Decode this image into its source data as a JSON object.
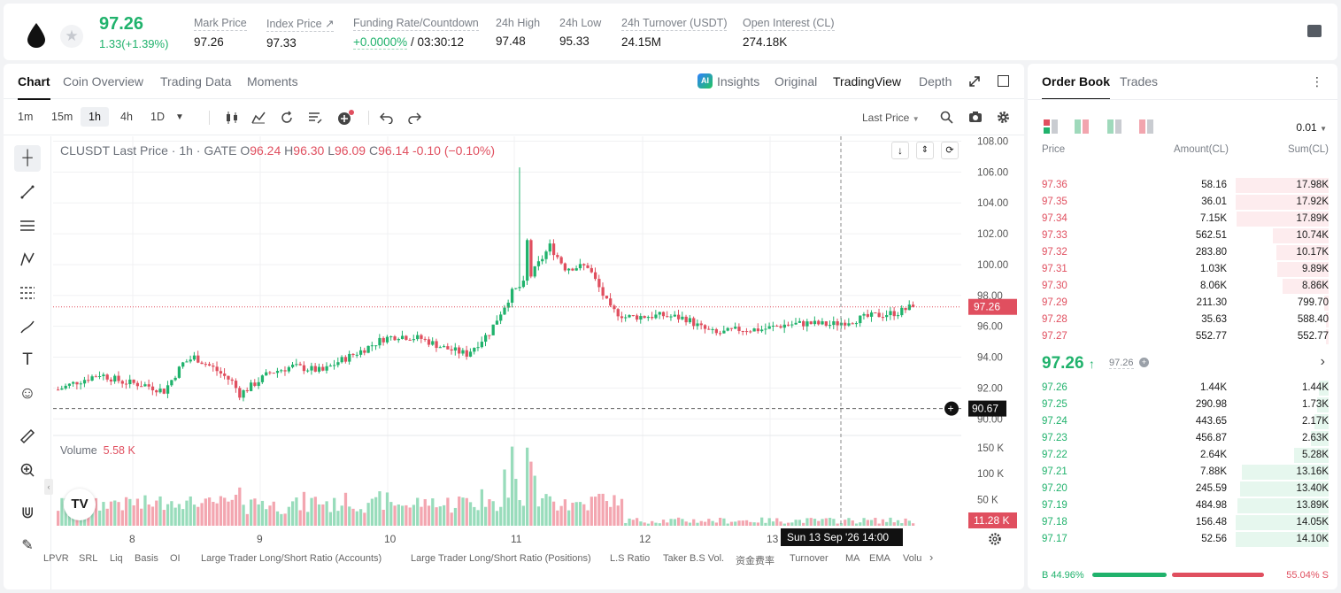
{
  "ticker": {
    "last": "97.26",
    "change": "1.33(+1.39%)",
    "stats": [
      {
        "label": "Mark Price",
        "value": "97.26"
      },
      {
        "label": "Index Price ↗",
        "value": "97.33"
      },
      {
        "label": "Funding Rate/Countdown",
        "value_green": "+0.0000%",
        "value": " / 03:30:12"
      },
      {
        "label": "24h High",
        "value": "97.48"
      },
      {
        "label": "24h Low",
        "value": "95.33"
      },
      {
        "label": "24h Turnover (USDT)",
        "value": "24.15M"
      },
      {
        "label": "Open Interest (CL)",
        "value": "274.18K"
      }
    ]
  },
  "tabs": [
    "Chart",
    "Coin Overview",
    "Trading Data",
    "Moments"
  ],
  "views": [
    "Insights",
    "Original",
    "TradingView",
    "Depth"
  ],
  "timeframes": [
    "1m",
    "15m",
    "1h",
    "4h",
    "1D"
  ],
  "last_price_select": "Last Price",
  "legend": {
    "symbol": "CLUSDT Last Price · 1h · GATE",
    "o": "O",
    "ov": "96.24",
    "h": "H",
    "hv": "96.30",
    "l": "L",
    "lv": "96.09",
    "c": "C",
    "cv": "96.14",
    "chg": "-0.10 (−0.10%)"
  },
  "volume": {
    "label": "Volume",
    "value": "5.58 K"
  },
  "price_axis": [
    "108.00",
    "106.00",
    "104.00",
    "102.00",
    "100.00",
    "98.00",
    "96.00",
    "94.00",
    "92.00",
    "90.00"
  ],
  "volume_axis": [
    "150 K",
    "100 K",
    "50 K"
  ],
  "price_tag": "97.26",
  "cross_tag": "90.67",
  "vol_tag": "11.28 K",
  "x_ticks": [
    "8",
    "9",
    "10",
    "11",
    "12",
    "13"
  ],
  "crosshair_date": "Sun 13 Sep '26   14:00",
  "indicators": [
    "LPVR",
    "SRL",
    "Liq",
    "Basis",
    "OI",
    "Large Trader Long/Short Ratio (Accounts)",
    "Large Trader Long/Short Ratio (Positions)",
    "L.S Ratio",
    "Taker B.S Vol.",
    "资金费率",
    "Turnover",
    "MA",
    "EMA",
    "Volu"
  ],
  "orderbook": {
    "tabs": [
      "Order Book",
      "Trades"
    ],
    "precision": "0.01",
    "headers": [
      "Price",
      "Amount(CL)",
      "Sum(CL)"
    ],
    "asks": [
      [
        "97.36",
        "58.16",
        "17.98K",
        1.0
      ],
      [
        "97.35",
        "36.01",
        "17.92K",
        0.997
      ],
      [
        "97.34",
        "7.15K",
        "17.89K",
        0.995
      ],
      [
        "97.33",
        "562.51",
        "10.74K",
        0.6
      ],
      [
        "97.32",
        "283.80",
        "10.17K",
        0.566
      ],
      [
        "97.31",
        "1.03K",
        "9.89K",
        0.55
      ],
      [
        "97.30",
        "8.06K",
        "8.86K",
        0.493
      ],
      [
        "97.29",
        "211.30",
        "799.70",
        0.044
      ],
      [
        "97.28",
        "35.63",
        "588.40",
        0.033
      ],
      [
        "97.27",
        "552.77",
        "552.77",
        0.031
      ]
    ],
    "mid": "97.26",
    "mid_mark": "97.26",
    "bids": [
      [
        "97.26",
        "1.44K",
        "1.44K",
        0.102
      ],
      [
        "97.25",
        "290.98",
        "1.73K",
        0.123
      ],
      [
        "97.24",
        "443.65",
        "2.17K",
        0.154
      ],
      [
        "97.23",
        "456.87",
        "2.63K",
        0.187
      ],
      [
        "97.22",
        "2.64K",
        "5.28K",
        0.374
      ],
      [
        "97.21",
        "7.88K",
        "13.16K",
        0.933
      ],
      [
        "97.20",
        "245.59",
        "13.40K",
        0.95
      ],
      [
        "97.19",
        "484.98",
        "13.89K",
        0.985
      ],
      [
        "97.18",
        "156.48",
        "14.05K",
        0.996
      ],
      [
        "97.17",
        "52.56",
        "14.10K",
        1.0
      ]
    ],
    "buy_ratio": "B 44.96%",
    "sell_ratio": "55.04% S",
    "buy_pct": 44.96
  },
  "colors": {
    "up": "#20b26c",
    "down": "#e04f5f"
  },
  "chart_data": {
    "type": "candlestick",
    "symbol": "CLUSDT",
    "interval": "1h",
    "ylim": [
      89.5,
      108.2
    ],
    "volume_ylim": [
      0,
      170
    ],
    "last": 97.26,
    "crosshair_price": 90.67,
    "path": [
      [
        0,
        91.9
      ],
      [
        5,
        92.4
      ],
      [
        11,
        92.9
      ],
      [
        17,
        92.4
      ],
      [
        23,
        92.2
      ],
      [
        28,
        91.8
      ],
      [
        33,
        93.6
      ],
      [
        36,
        94.0
      ],
      [
        41,
        93.3
      ],
      [
        46,
        92.4
      ],
      [
        48,
        91.6
      ],
      [
        52,
        92.3
      ],
      [
        56,
        93.0
      ],
      [
        62,
        93.4
      ],
      [
        70,
        93.1
      ],
      [
        74,
        93.7
      ],
      [
        80,
        94.4
      ],
      [
        86,
        95.2
      ],
      [
        90,
        95.4
      ],
      [
        96,
        95.2
      ],
      [
        102,
        94.6
      ],
      [
        108,
        94.2
      ],
      [
        114,
        95.6
      ],
      [
        120,
        98.2
      ],
      [
        124,
        98.9
      ],
      [
        130,
        101.2
      ],
      [
        134,
        99.8
      ],
      [
        140,
        99.9
      ],
      [
        146,
        97.1
      ],
      [
        150,
        96.6
      ],
      [
        160,
        96.7
      ],
      [
        166,
        96.5
      ],
      [
        170,
        95.9
      ],
      [
        174,
        95.5
      ],
      [
        180,
        95.8
      ],
      [
        186,
        95.8
      ],
      [
        192,
        96.1
      ],
      [
        198,
        96.2
      ],
      [
        204,
        96.1
      ],
      [
        210,
        96.4
      ],
      [
        216,
        96.7
      ],
      [
        222,
        96.9
      ],
      [
        226,
        97.3
      ]
    ]
  }
}
